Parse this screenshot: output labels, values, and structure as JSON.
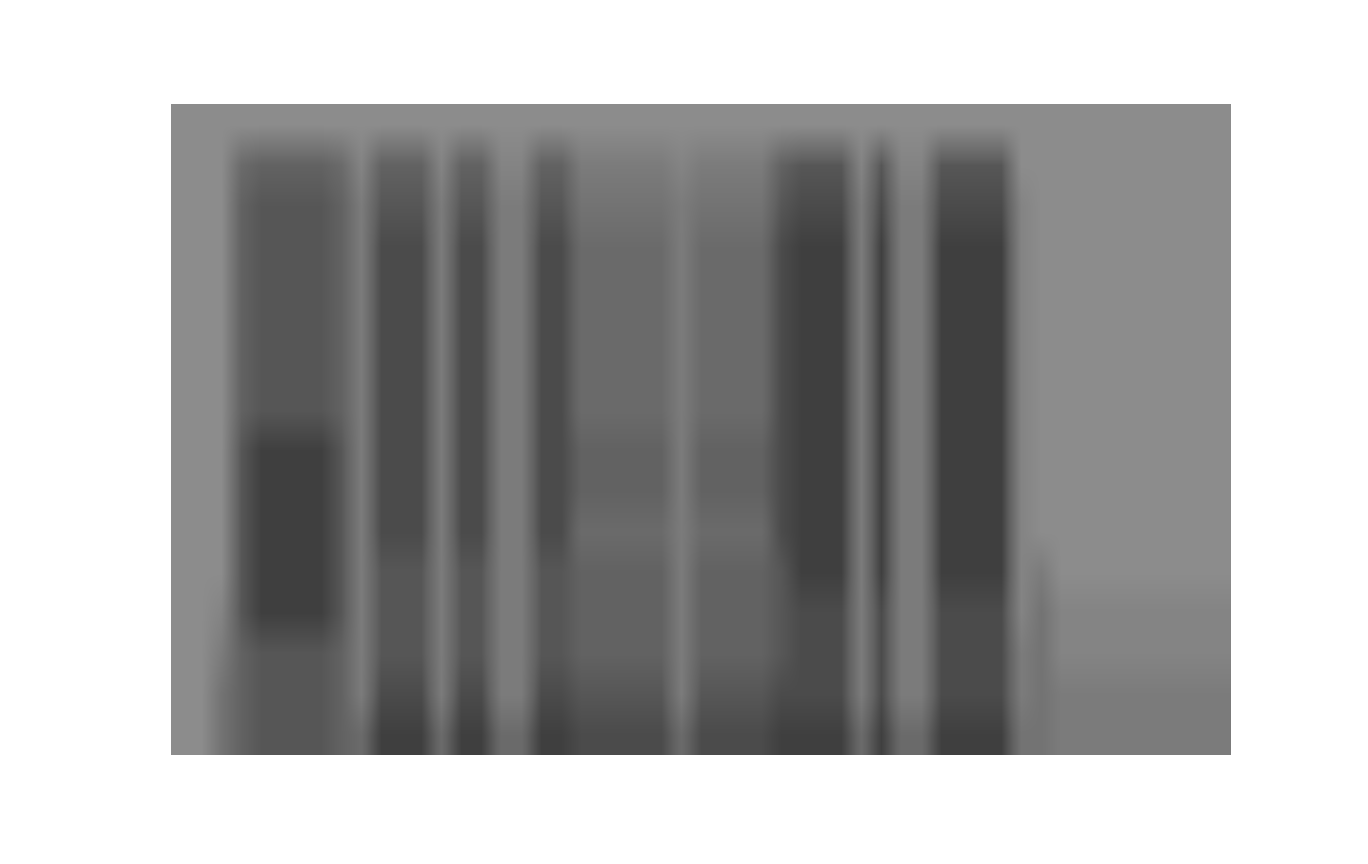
{
  "chart_data": {
    "type": "heatmap",
    "tick_labels": false,
    "zlim": [
      0,
      10
    ],
    "z": [
      [
        0,
        0,
        3,
        5,
        6,
        6,
        6,
        6,
        5,
        4,
        8,
        8,
        8,
        4,
        8,
        8,
        4,
        4,
        8,
        8,
        7,
        7,
        7,
        7,
        7,
        4,
        7,
        7,
        7,
        7,
        8,
        8,
        8,
        8,
        4,
        8,
        4,
        4,
        8,
        8,
        8,
        8,
        3,
        3,
        2,
        2,
        2,
        2,
        2,
        2,
        2,
        2,
        2
      ],
      [
        0,
        0,
        3,
        5,
        6,
        6,
        6,
        6,
        5,
        2,
        7,
        7,
        7,
        2,
        7,
        7,
        2,
        2,
        7,
        7,
        6,
        6,
        6,
        6,
        6,
        2,
        6,
        6,
        6,
        6,
        7,
        7,
        7,
        7,
        2,
        7,
        2,
        2,
        7,
        7,
        7,
        7,
        2,
        3,
        2,
        2,
        2,
        2,
        2,
        2,
        2,
        2,
        2
      ],
      [
        0,
        0,
        2,
        5,
        6,
        6,
        6,
        6,
        5,
        2,
        6,
        6,
        6,
        2,
        6,
        6,
        2,
        2,
        6,
        6,
        5,
        5,
        5,
        5,
        5,
        2,
        5,
        5,
        5,
        5,
        6,
        7,
        7,
        7,
        2,
        7,
        2,
        2,
        7,
        7,
        7,
        7,
        2,
        3,
        1,
        1,
        1,
        1,
        1,
        1,
        1,
        1,
        1
      ],
      [
        0,
        0,
        1,
        6,
        8,
        8,
        8,
        8,
        6,
        2,
        6,
        6,
        6,
        2,
        6,
        6,
        2,
        2,
        6,
        6,
        5,
        5,
        5,
        5,
        5,
        2,
        5,
        5,
        5,
        5,
        6,
        7,
        7,
        7,
        2,
        7,
        2,
        2,
        7,
        7,
        7,
        7,
        1,
        3,
        1,
        1,
        1,
        1,
        1,
        1,
        1,
        1,
        1
      ],
      [
        0,
        0,
        0,
        6,
        8,
        8,
        8,
        8,
        6,
        2,
        6,
        6,
        6,
        2,
        6,
        6,
        2,
        2,
        6,
        6,
        5,
        5,
        5,
        5,
        5,
        2,
        5,
        5,
        5,
        5,
        6,
        8,
        8,
        8,
        2,
        8,
        2,
        2,
        8,
        8,
        8,
        8,
        1,
        2,
        0,
        0,
        0,
        0,
        0,
        0,
        0,
        0,
        0
      ],
      [
        0,
        0,
        0,
        6,
        8,
        8,
        8,
        8,
        6,
        2,
        7,
        7,
        7,
        2,
        7,
        7,
        2,
        2,
        7,
        7,
        4,
        4,
        4,
        4,
        4,
        2,
        4,
        4,
        4,
        4,
        7,
        8,
        8,
        8,
        2,
        8,
        2,
        2,
        8,
        8,
        8,
        8,
        1,
        0,
        0,
        0,
        0,
        0,
        0,
        0,
        0,
        0,
        0
      ],
      [
        0,
        0,
        0,
        6,
        8,
        8,
        8,
        8,
        6,
        2,
        7,
        7,
        7,
        2,
        7,
        7,
        2,
        2,
        7,
        7,
        5,
        5,
        5,
        5,
        5,
        2,
        5,
        5,
        5,
        5,
        7,
        8,
        8,
        8,
        2,
        8,
        2,
        2,
        8,
        8,
        8,
        8,
        1,
        0,
        0,
        0,
        0,
        0,
        0,
        0,
        0,
        0,
        0
      ],
      [
        0,
        0,
        0,
        6,
        8,
        8,
        8,
        8,
        6,
        2,
        7,
        7,
        7,
        2,
        7,
        7,
        2,
        2,
        7,
        7,
        5,
        5,
        5,
        5,
        5,
        2,
        5,
        5,
        5,
        5,
        7,
        8,
        8,
        8,
        2,
        8,
        2,
        2,
        8,
        8,
        8,
        8,
        1,
        0,
        0,
        0,
        0,
        0,
        0,
        0,
        0,
        0,
        0
      ],
      [
        0,
        0,
        0,
        5,
        6,
        6,
        6,
        6,
        5,
        2,
        7,
        7,
        7,
        2,
        7,
        7,
        2,
        2,
        7,
        7,
        4,
        4,
        4,
        4,
        4,
        2,
        4,
        4,
        4,
        4,
        7,
        8,
        8,
        8,
        2,
        8,
        2,
        2,
        8,
        8,
        8,
        8,
        1,
        0,
        0,
        0,
        0,
        0,
        0,
        0,
        0,
        0,
        0
      ],
      [
        0,
        0,
        0,
        5,
        6,
        6,
        6,
        6,
        5,
        2,
        7,
        7,
        7,
        2,
        7,
        7,
        2,
        2,
        7,
        7,
        4,
        4,
        4,
        4,
        4,
        2,
        4,
        4,
        4,
        4,
        7,
        8,
        8,
        8,
        2,
        8,
        2,
        2,
        8,
        8,
        8,
        8,
        1,
        0,
        0,
        0,
        0,
        0,
        0,
        0,
        0,
        0,
        0
      ],
      [
        0,
        0,
        0,
        5,
        6,
        6,
        6,
        6,
        5,
        2,
        7,
        7,
        7,
        2,
        7,
        7,
        2,
        2,
        7,
        7,
        4,
        4,
        4,
        4,
        4,
        2,
        4,
        4,
        4,
        4,
        7,
        8,
        8,
        8,
        2,
        8,
        2,
        2,
        8,
        8,
        8,
        8,
        1,
        0,
        0,
        0,
        0,
        0,
        0,
        0,
        0,
        0,
        0
      ],
      [
        0,
        0,
        0,
        5,
        6,
        6,
        6,
        6,
        5,
        2,
        7,
        7,
        7,
        2,
        7,
        7,
        2,
        2,
        7,
        7,
        4,
        4,
        4,
        4,
        4,
        2,
        4,
        4,
        4,
        4,
        7,
        8,
        8,
        8,
        2,
        8,
        2,
        2,
        8,
        8,
        8,
        8,
        1,
        0,
        0,
        0,
        0,
        0,
        0,
        0,
        0,
        0,
        0
      ],
      [
        0,
        0,
        0,
        5,
        6,
        6,
        6,
        6,
        5,
        2,
        7,
        7,
        7,
        2,
        7,
        7,
        2,
        2,
        7,
        7,
        4,
        4,
        4,
        4,
        4,
        2,
        4,
        4,
        4,
        4,
        7,
        8,
        8,
        8,
        2,
        8,
        2,
        2,
        8,
        8,
        8,
        8,
        1,
        0,
        0,
        0,
        0,
        0,
        0,
        0,
        0,
        0,
        0
      ],
      [
        0,
        0,
        0,
        5,
        6,
        6,
        6,
        6,
        5,
        2,
        6,
        6,
        6,
        2,
        6,
        6,
        2,
        2,
        6,
        6,
        3,
        3,
        3,
        3,
        3,
        2,
        3,
        3,
        3,
        3,
        6,
        7,
        7,
        7,
        2,
        7,
        2,
        2,
        7,
        7,
        7,
        7,
        1,
        0,
        0,
        0,
        0,
        0,
        0,
        0,
        0,
        0,
        0
      ],
      [
        0,
        0,
        0,
        4,
        5,
        5,
        5,
        5,
        4,
        1,
        5,
        5,
        5,
        1,
        5,
        5,
        1,
        1,
        5,
        5,
        2,
        2,
        2,
        2,
        2,
        1,
        2,
        2,
        2,
        2,
        5,
        6,
        6,
        6,
        1,
        6,
        1,
        1,
        6,
        6,
        6,
        6,
        0,
        0,
        0,
        0,
        0,
        0,
        0,
        0,
        0,
        0,
        0
      ],
      [
        0,
        0,
        0,
        0,
        0,
        0,
        0,
        0,
        0,
        0,
        0,
        0,
        0,
        0,
        0,
        0,
        0,
        0,
        0,
        0,
        0,
        0,
        0,
        0,
        0,
        0,
        0,
        0,
        0,
        0,
        0,
        0,
        0,
        0,
        0,
        0,
        0,
        0,
        0,
        0,
        0,
        0,
        0,
        0,
        0,
        0,
        0,
        0,
        0,
        0,
        0,
        0,
        0
      ]
    ]
  }
}
